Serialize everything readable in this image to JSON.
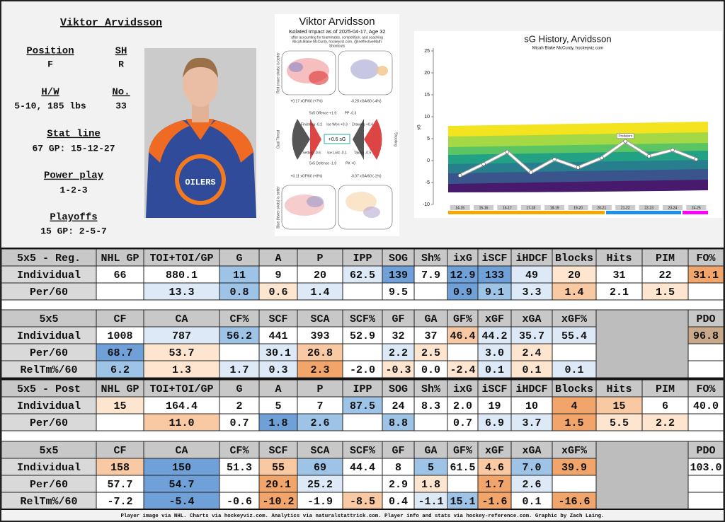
{
  "player": {
    "name": "Viktor Arvidsson",
    "position_label": "Position",
    "position": "F",
    "shoots_label": "SH",
    "shoots": "R",
    "hw_label": "H/W",
    "hw": "5-10, 185 lbs",
    "number_label": "No.",
    "number": "33",
    "stat_line_label": "Stat line",
    "stat_line": "67 GP: 15-12-27",
    "pp_label": "Power play",
    "pp": "1-2-3",
    "playoffs_label": "Playoffs",
    "playoffs": "15 GP: 2-5-7"
  },
  "impact": {
    "title": "Viktor Arvidsson",
    "subtitle": "Isolated Impact as of 2025-04-17, Age 32",
    "note": "after accounting for teammates, competition, and coaching",
    "credit": "Micah-Blake McCurdy, hockeyviz.com, @IneffectiveMath",
    "shootouts": "Shootouts",
    "top_left": "+0.17 xGF/60 (+7%)",
    "top_right": "-0.28 xGA/60 (-4%)",
    "center": "+0.6 sG",
    "bottom_left": "+0.11 xGF/60 (+8%)",
    "bottom_right": "-0.07 xGA/60 (-1%)",
    "red_side": "Red (more shots) is better",
    "blue_side": "Blue (fewer shots) is better",
    "goal_threat": "Goal Threat",
    "shooting": "Shooting",
    "offence": "5v5 Offence +1.9",
    "pp": "PP -0.3",
    "finishing": "Finishing -0.2",
    "ice_won": "Ice Won +0.3",
    "drawing": "Drawing +0.4",
    "setting": "Setting -0.6",
    "ice_lost": "Ice Lost -0.1",
    "taking": "Taking -0.5",
    "defence": "5v5 Defence -1.9",
    "pk": "PK +0"
  },
  "chart_data": {
    "type": "line",
    "title": "sG History, Arvidsson",
    "subtitle": "Micah Blake McCurdy, hockeyviz.com",
    "y_label": "sG",
    "annotation": "Predators",
    "categories": [
      "14-15",
      "15-16",
      "16-17",
      "17-18",
      "18-19",
      "19-20",
      "20-21",
      "21-22",
      "22-23",
      "23-24",
      "24-25"
    ],
    "values": [
      -3.4,
      -0.8,
      2,
      -2.7,
      0.3,
      -1.6,
      0.6,
      4.4,
      1,
      2.4,
      0.3
    ],
    "color": "#ffffff",
    "ylim": [
      -10,
      25
    ],
    "yticks": [
      -10,
      -5,
      0,
      5,
      10,
      15,
      20,
      25
    ]
  },
  "tables": [
    {
      "header": [
        "5x5 - Reg.",
        "NHL GP",
        "TOI+TOI/GP",
        "G",
        "A",
        "P",
        "IPP",
        "SOG",
        "Sh%",
        "ixG",
        "iSCF",
        "iHDCF",
        "Blocks",
        "Hits",
        "PIM",
        "FO%"
      ],
      "rows": [
        {
          "label": "Individual",
          "cells": [
            "66",
            "880.1",
            "11",
            "9",
            "20",
            "62.5",
            "139",
            "7.9",
            "12.9",
            "133",
            "49",
            "20",
            "31",
            "22",
            "31.1"
          ]
        },
        {
          "label": "Per/60",
          "cells": [
            null,
            "13.3",
            "0.8",
            "0.6",
            "1.4",
            null,
            "9.5",
            null,
            "0.9",
            "9.1",
            "3.3",
            "1.4",
            "2.1",
            "1.5",
            null
          ]
        }
      ]
    },
    {
      "header": [
        "5x5",
        "CF",
        "CA",
        "CF%",
        "SCF",
        "SCA",
        "SCF%",
        "GF",
        "GA",
        "GF%",
        "xGF",
        "xGA",
        "xGF%",
        "PDO"
      ],
      "rows": [
        {
          "label": "Individual",
          "cells": [
            "1008",
            "787",
            "56.2",
            "441",
            "393",
            "52.9",
            "32",
            "37",
            "46.4",
            "44.2",
            "35.7",
            "55.4",
            "96.8"
          ]
        },
        {
          "label": "Per/60",
          "cells": [
            "68.7",
            "53.7",
            null,
            "30.1",
            "26.8",
            null,
            "2.2",
            "2.5",
            null,
            "3.0",
            "2.4",
            null
          ]
        },
        {
          "label": "RelTm%/60",
          "cells": [
            "6.2",
            "1.3",
            "1.7",
            "0.3",
            "2.3",
            "-2.0",
            "-0.3",
            "0.0",
            "-2.4",
            "0.1",
            "0.1",
            "0.1"
          ]
        }
      ]
    },
    {
      "header": [
        "5x5 - Post",
        "NHL GP",
        "TOI+TOI/GP",
        "G",
        "A",
        "P",
        "IPP",
        "SOG",
        "Sh%",
        "ixG",
        "iSCF",
        "iHDCF",
        "Blocks",
        "Hits",
        "PIM",
        "FO%"
      ],
      "rows": [
        {
          "label": "Individual",
          "cells": [
            "15",
            "164.4",
            "2",
            "5",
            "7",
            "87.5",
            "24",
            "8.3",
            "2.0",
            "19",
            "10",
            "4",
            "15",
            "6",
            "40.0"
          ]
        },
        {
          "label": "Per/60",
          "cells": [
            null,
            "11.0",
            "0.7",
            "1.8",
            "2.6",
            null,
            "8.8",
            null,
            "0.7",
            "6.9",
            "3.7",
            "1.5",
            "5.5",
            "2.2",
            null
          ]
        }
      ]
    },
    {
      "header": [
        "5x5",
        "CF",
        "CA",
        "CF%",
        "SCF",
        "SCA",
        "SCF%",
        "GF",
        "GA",
        "GF%",
        "xGF",
        "xGA",
        "xGF%",
        "PDO"
      ],
      "rows": [
        {
          "label": "Individual",
          "cells": [
            "158",
            "150",
            "51.3",
            "55",
            "69",
            "44.4",
            "8",
            "5",
            "61.5",
            "4.6",
            "7.0",
            "39.9",
            "103.0"
          ]
        },
        {
          "label": "Per/60",
          "cells": [
            "57.7",
            "54.7",
            null,
            "20.1",
            "25.2",
            null,
            "2.9",
            "1.8",
            null,
            "1.7",
            "2.6",
            null
          ]
        },
        {
          "label": "RelTm%/60",
          "cells": [
            "-7.2",
            "-5.4",
            "-0.6",
            "-10.2",
            "-1.9",
            "-8.5",
            "0.4",
            "-1.1",
            "15.1",
            "-1.6",
            "0.1",
            "-16.6"
          ]
        }
      ]
    }
  ],
  "footer": "Player image via NHL. Charts via hockeyviz.com. Analytics via naturalstattrick.com. Player info and stats via hockey-reference.com. Graphic by Zach Laing."
}
